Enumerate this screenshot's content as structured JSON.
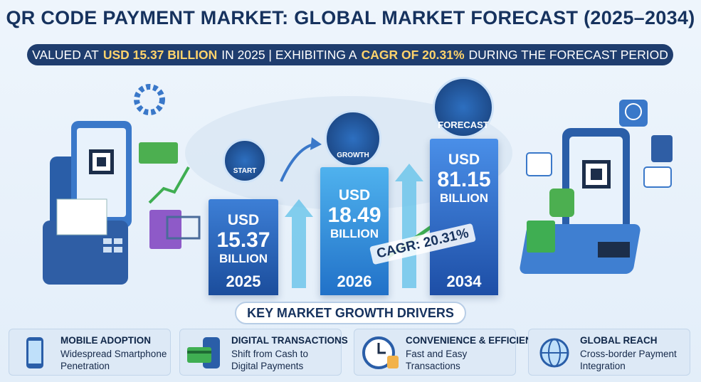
{
  "header": {
    "title": "QR CODE PAYMENT MARKET: GLOBAL MARKET FORECAST (2025–2034)",
    "subtitle_parts": [
      "VALUED AT",
      "USD 15.37 BILLION",
      "IN 2025 | EXHIBITING A",
      "CAGR OF 20.31%",
      "DURING THE FORECAST PERIOD"
    ]
  },
  "bars": [
    {
      "badge": "START",
      "currency": "USD",
      "value": "15.37",
      "unit": "BILLION",
      "year": "2025"
    },
    {
      "badge": "GROWTH",
      "currency": "USD",
      "value": "18.49",
      "unit": "BILLION",
      "year": "2026"
    },
    {
      "badge": "FORECAST",
      "currency": "USD",
      "value": "81.15",
      "unit": "BILLION",
      "year": "2034"
    }
  ],
  "cagr_label": "CAGR: 20.31%",
  "drivers": {
    "title": "KEY MARKET GROWTH DRIVERS",
    "items": [
      {
        "title": "MOBILE ADOPTION",
        "lines": [
          "Widespread Smartphone",
          "Penetration"
        ]
      },
      {
        "title": "DIGITAL TRANSACTIONS",
        "lines": [
          "Shift from Cash to",
          "Digital Payments"
        ]
      },
      {
        "title": "CONVENIENCE & EFFICIENCY",
        "lines": [
          "Fast and Easy",
          "Transactions"
        ]
      },
      {
        "title": "GLOBAL REACH",
        "lines": [
          "Cross-border Payment",
          "Integration"
        ]
      }
    ]
  }
}
